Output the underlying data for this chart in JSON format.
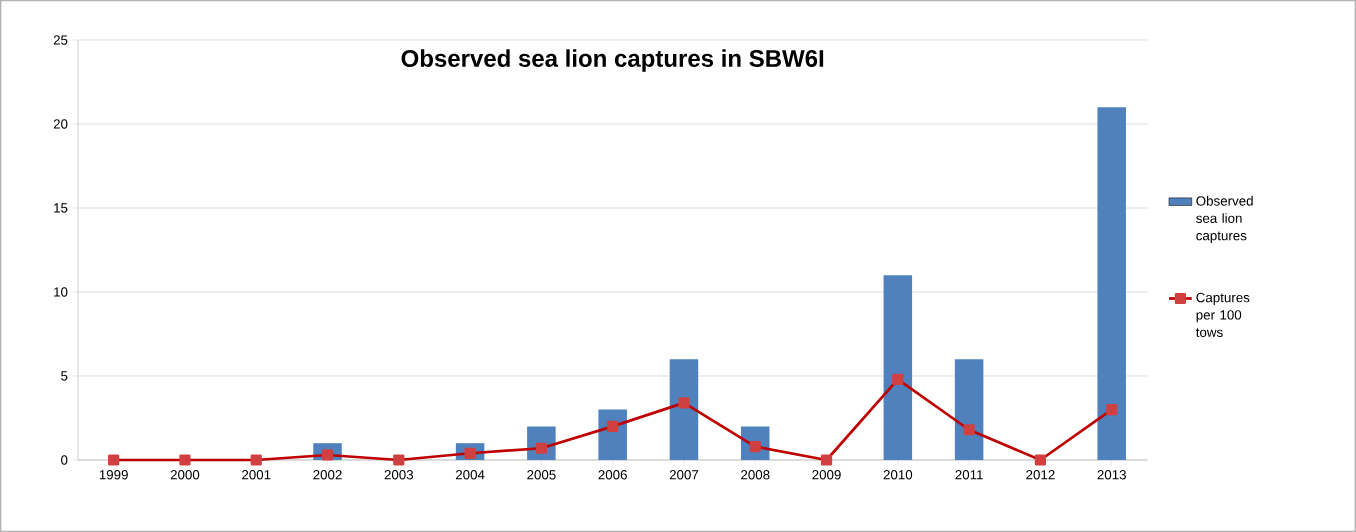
{
  "chart_data": {
    "type": "bar",
    "title": "Observed sea lion captures in SBW6I",
    "categories": [
      "1999",
      "2000",
      "2001",
      "2002",
      "2003",
      "2004",
      "2005",
      "2006",
      "2007",
      "2008",
      "2009",
      "2010",
      "2011",
      "2012",
      "2013"
    ],
    "series": [
      {
        "name": "Observed sea lion captures",
        "color": "#4f81bd",
        "values": [
          0,
          0,
          0,
          1,
          0,
          1,
          2,
          3,
          6,
          2,
          0,
          11,
          6,
          0,
          21
        ]
      },
      {
        "name": "Captures per 100 tows",
        "type": "line",
        "color": "#c00000",
        "marker": "square",
        "values": [
          0,
          0,
          0,
          0.3,
          0,
          0.4,
          0.7,
          2.0,
          3.4,
          0.8,
          0,
          4.8,
          1.8,
          0,
          3.0
        ]
      }
    ],
    "ylim": [
      0,
      25
    ],
    "yticks": [
      0,
      5,
      10,
      15,
      20,
      25
    ],
    "grid": "y",
    "legend": "right"
  }
}
